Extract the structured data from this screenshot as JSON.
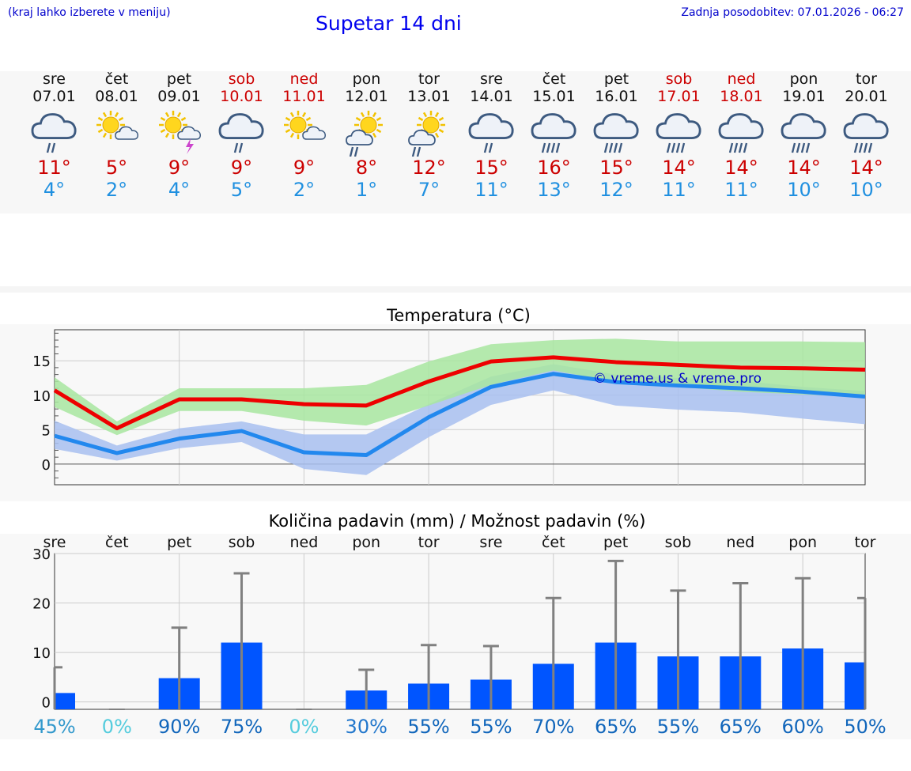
{
  "header": {
    "hint": "(kraj lahko izberete v meniju)",
    "title": "Supetar 14 dni",
    "updated": "Zadnja posodobitev: 07.01.2026 - 06:27"
  },
  "days": [
    {
      "name": "sre",
      "date": "07.01",
      "weekend": false,
      "icon": "cloud-rain-icon",
      "max": "11°",
      "min": "4°"
    },
    {
      "name": "čet",
      "date": "08.01",
      "weekend": false,
      "icon": "sun-cloud-icon",
      "max": "5°",
      "min": "2°"
    },
    {
      "name": "pet",
      "date": "09.01",
      "weekend": false,
      "icon": "sun-thunder-icon",
      "max": "9°",
      "min": "4°"
    },
    {
      "name": "sob",
      "date": "10.01",
      "weekend": true,
      "icon": "cloud-rain-icon",
      "max": "9°",
      "min": "5°"
    },
    {
      "name": "ned",
      "date": "11.01",
      "weekend": true,
      "icon": "sun-cloud-icon",
      "max": "9°",
      "min": "2°"
    },
    {
      "name": "pon",
      "date": "12.01",
      "weekend": false,
      "icon": "sun-cloud-rain-icon",
      "max": "8°",
      "min": "1°"
    },
    {
      "name": "tor",
      "date": "13.01",
      "weekend": false,
      "icon": "sun-cloud-rain-icon",
      "max": "12°",
      "min": "7°"
    },
    {
      "name": "sre",
      "date": "14.01",
      "weekend": false,
      "icon": "cloud-rain-icon",
      "max": "15°",
      "min": "11°"
    },
    {
      "name": "čet",
      "date": "15.01",
      "weekend": false,
      "icon": "cloud-heavy-rain-icon",
      "max": "16°",
      "min": "13°"
    },
    {
      "name": "pet",
      "date": "16.01",
      "weekend": false,
      "icon": "cloud-heavy-rain-icon",
      "max": "15°",
      "min": "12°"
    },
    {
      "name": "sob",
      "date": "17.01",
      "weekend": true,
      "icon": "cloud-heavy-rain-icon",
      "max": "14°",
      "min": "11°"
    },
    {
      "name": "ned",
      "date": "18.01",
      "weekend": true,
      "icon": "cloud-heavy-rain-icon",
      "max": "14°",
      "min": "11°"
    },
    {
      "name": "pon",
      "date": "19.01",
      "weekend": false,
      "icon": "cloud-heavy-rain-icon",
      "max": "14°",
      "min": "10°"
    },
    {
      "name": "tor",
      "date": "20.01",
      "weekend": false,
      "icon": "cloud-heavy-rain-icon",
      "max": "14°",
      "min": "10°"
    }
  ],
  "colors": {
    "max_line": "#ee0000",
    "min_line": "#2288ee",
    "max_band": "#a8e6a0",
    "min_band": "#a8c0f0",
    "bar": "#0055ff",
    "whisker": "#808080"
  },
  "chart_data": [
    {
      "type": "line",
      "title": "Temperatura (°C)",
      "ylim": [
        -3,
        19.5
      ],
      "yticks": [
        0,
        5,
        10,
        15
      ],
      "watermark": "© vreme.us & vreme.pro",
      "x": [
        0,
        1,
        2,
        3,
        4,
        5,
        6,
        7,
        8,
        9,
        10,
        11,
        12,
        13
      ],
      "series": [
        {
          "name": "max",
          "values": [
            10.7,
            5.2,
            9.4,
            9.4,
            8.7,
            8.5,
            12.0,
            14.9,
            15.5,
            14.8,
            14.4,
            14.0,
            13.9,
            13.7
          ]
        },
        {
          "name": "max_low",
          "values": [
            8.3,
            4.2,
            7.7,
            7.7,
            6.3,
            5.6,
            8.5,
            11.5,
            13.6,
            11.9,
            11.2,
            10.5,
            10.1,
            9.7
          ]
        },
        {
          "name": "max_high",
          "values": [
            12.6,
            6.2,
            11.0,
            11.0,
            11.0,
            11.5,
            14.9,
            17.4,
            18.0,
            18.2,
            17.8,
            17.8,
            17.8,
            17.7
          ]
        },
        {
          "name": "min",
          "values": [
            4.1,
            1.6,
            3.7,
            4.8,
            1.7,
            1.3,
            6.8,
            11.2,
            13.1,
            11.9,
            11.4,
            11.0,
            10.5,
            9.8
          ]
        },
        {
          "name": "min_low",
          "values": [
            2.2,
            0.5,
            2.3,
            3.2,
            -0.7,
            -1.6,
            3.9,
            8.6,
            10.7,
            8.5,
            7.9,
            7.5,
            6.6,
            5.8
          ]
        },
        {
          "name": "min_high",
          "values": [
            6.3,
            2.7,
            5.2,
            6.2,
            4.3,
            4.3,
            8.7,
            12.7,
            14.5,
            13.0,
            12.5,
            12.1,
            11.2,
            10.6
          ]
        }
      ]
    },
    {
      "type": "bar",
      "title": "Količina padavin (mm) / Možnost padavin (%)",
      "ylim": [
        -1.5,
        30
      ],
      "yticks": [
        0,
        10,
        20,
        30
      ],
      "categories": [
        "sre",
        "čet",
        "pet",
        "sob",
        "ned",
        "pon",
        "tor",
        "sre",
        "čet",
        "pet",
        "sob",
        "ned",
        "pon",
        "tor"
      ],
      "values": [
        1.8,
        0,
        4.8,
        12.0,
        0,
        2.3,
        3.7,
        4.5,
        7.7,
        12.0,
        9.2,
        9.2,
        10.8,
        8.0
      ],
      "whisker_high": [
        7,
        0,
        15,
        26,
        0,
        6.5,
        11.5,
        11.3,
        21,
        28.5,
        22.5,
        24,
        25,
        21
      ],
      "probability": [
        "45%",
        "0%",
        "90%",
        "75%",
        "0%",
        "30%",
        "55%",
        "55%",
        "70%",
        "65%",
        "55%",
        "65%",
        "60%",
        "50%"
      ],
      "prob_colors": [
        "#3399cc",
        "#55ccdd",
        "#1166bb",
        "#1166bb",
        "#55ccdd",
        "#2277cc",
        "#1166bb",
        "#1166bb",
        "#1166bb",
        "#1166bb",
        "#1166bb",
        "#1166bb",
        "#1166bb",
        "#1166bb"
      ]
    }
  ]
}
